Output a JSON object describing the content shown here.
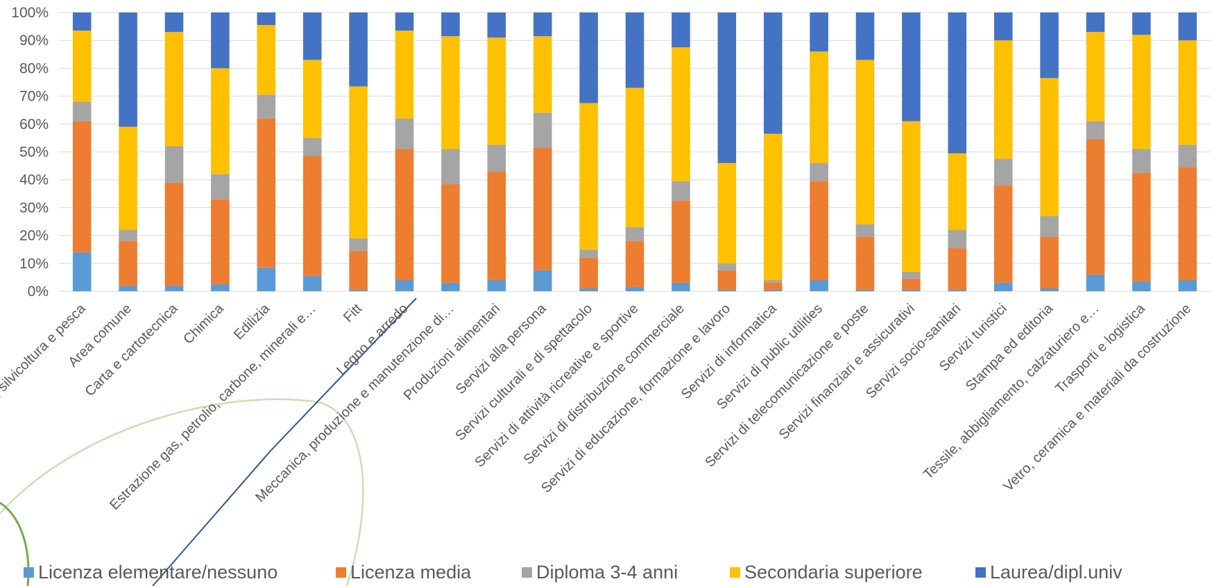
{
  "chart_data": {
    "type": "bar",
    "stacked": "percent",
    "title": "",
    "xlabel": "",
    "ylabel": "",
    "ylim": [
      0,
      100
    ],
    "y_ticks": [
      "0%",
      "10%",
      "20%",
      "30%",
      "40%",
      "50%",
      "60%",
      "70%",
      "80%",
      "90%",
      "100%"
    ],
    "grid": true,
    "legend_position": "bottom",
    "categories": [
      "Agricoltura, silvicoltura e pesca",
      "Area comune",
      "Carta e cartotecnica",
      "Chimica",
      "Edilizia",
      "Estrazione gas, petrolio, carbone, minerali e…",
      "Fitt",
      "Legno e arredo",
      "Meccanica, produzione e manutenzione di…",
      "Produzioni alimentari",
      "Servizi alla persona",
      "Servizi culturali e di spettacolo",
      "Servizi di attività ricreative e sportive",
      "Servizi di distribuzione commerciale",
      "Servizi di educazione, formazione e lavoro",
      "Servizi di informatica",
      "Servizi di public utilities",
      "Servizi di telecomunicazione e poste",
      "Servizi finanziari e assicurativi",
      "Servizi socio-sanitari",
      "Servizi turistici",
      "Stampa ed editoria",
      "Tessile, abbigliamento, calzaturiero e…",
      "Trasporti e logistica",
      "Vetro, ceramica e materiali da costruzione"
    ],
    "series": [
      {
        "name": "Licenza elementare/nessuno",
        "color": "#5B9BD5",
        "values": [
          14,
          2,
          2,
          2.5,
          8.5,
          5.5,
          0.5,
          4,
          3,
          4,
          7.5,
          1,
          1.5,
          3,
          0.5,
          0.5,
          4,
          0.5,
          0.5,
          0.5,
          3,
          1,
          6,
          3.5,
          4
        ]
      },
      {
        "name": "Licenza media",
        "color": "#ED7D31",
        "values": [
          47,
          16,
          37,
          30.5,
          53.5,
          43,
          14,
          47,
          35.5,
          39,
          44,
          11,
          16.5,
          29.5,
          7,
          2.5,
          35.5,
          19,
          4,
          15,
          35,
          18.5,
          48.5,
          39,
          40.5
        ]
      },
      {
        "name": "Diploma 3-4 anni",
        "color": "#A5A5A5",
        "values": [
          7,
          4,
          13,
          9,
          8.5,
          6.5,
          4.5,
          11,
          12.5,
          9.5,
          12.5,
          3,
          5,
          7,
          2.5,
          1,
          6.5,
          4.5,
          2.5,
          6.5,
          9.5,
          7.5,
          6.5,
          8.5,
          8
        ]
      },
      {
        "name": "Secondaria superiore",
        "color": "#FFC000",
        "values": [
          25.5,
          37,
          41,
          38,
          25,
          28,
          54.5,
          31.5,
          40.5,
          38.5,
          27.5,
          52.5,
          50,
          48,
          36,
          52.5,
          40,
          59,
          54,
          27.5,
          42.5,
          49.5,
          32,
          41,
          37.5
        ]
      },
      {
        "name": "Laurea/dipl.univ",
        "color": "#4472C4",
        "values": [
          6.5,
          41,
          7,
          20,
          4.5,
          17,
          26.5,
          6.5,
          8.5,
          9,
          8.5,
          32.5,
          27,
          12.5,
          54,
          43.5,
          14,
          17,
          39,
          50.5,
          10,
          23.5,
          7,
          8,
          10
        ]
      }
    ]
  },
  "legend": {
    "items": [
      {
        "label": "Licenza elementare/nessuno",
        "color": "#5B9BD5"
      },
      {
        "label": "Licenza media",
        "color": "#ED7D31"
      },
      {
        "label": "Diploma 3-4 anni",
        "color": "#A5A5A5"
      },
      {
        "label": "Secondaria superiore",
        "color": "#FFC000"
      },
      {
        "label": "Laurea/dipl.univ",
        "color": "#4472C4"
      }
    ]
  }
}
